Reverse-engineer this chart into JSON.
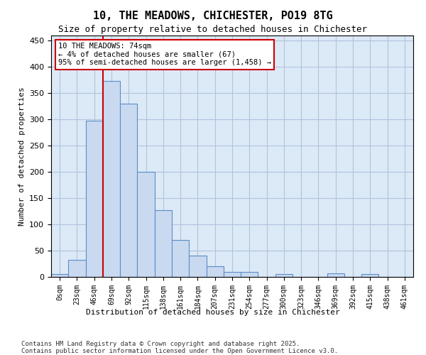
{
  "title_line1": "10, THE MEADOWS, CHICHESTER, PO19 8TG",
  "title_line2": "Size of property relative to detached houses in Chichester",
  "xlabel": "Distribution of detached houses by size in Chichester",
  "ylabel": "Number of detached properties",
  "categories": [
    "0sqm",
    "23sqm",
    "46sqm",
    "69sqm",
    "92sqm",
    "115sqm",
    "138sqm",
    "161sqm",
    "184sqm",
    "207sqm",
    "231sqm",
    "254sqm",
    "277sqm",
    "300sqm",
    "323sqm",
    "346sqm",
    "369sqm",
    "392sqm",
    "415sqm",
    "438sqm",
    "461sqm"
  ],
  "values": [
    5,
    33,
    298,
    373,
    330,
    200,
    127,
    70,
    40,
    20,
    10,
    10,
    0,
    5,
    0,
    0,
    7,
    0,
    6,
    0,
    0
  ],
  "bar_color": "#c9d9f0",
  "bar_edge_color": "#5a8ec5",
  "grid_color": "#b0c4de",
  "background_color": "#dce9f7",
  "vline_x": 3,
  "vline_color": "#cc0000",
  "annotation_text": "10 THE MEADOWS: 74sqm\n← 4% of detached houses are smaller (67)\n95% of semi-detached houses are larger (1,458) →",
  "annotation_box_color": "#ffffff",
  "annotation_box_edge": "#cc0000",
  "footer_text": "Contains HM Land Registry data © Crown copyright and database right 2025.\nContains public sector information licensed under the Open Government Licence v3.0.",
  "ylim": [
    0,
    460
  ],
  "yticks": [
    0,
    50,
    100,
    150,
    200,
    250,
    300,
    350,
    400,
    450
  ]
}
